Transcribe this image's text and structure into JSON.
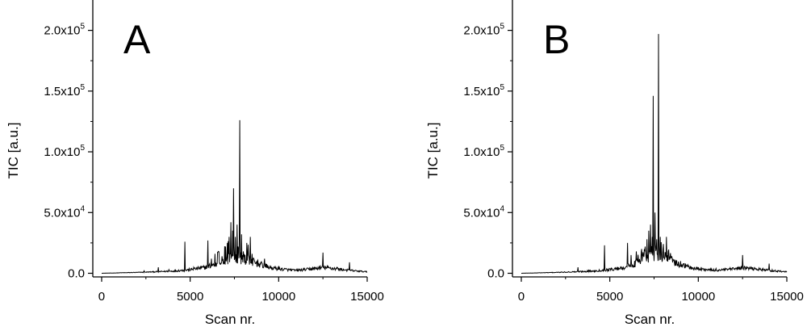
{
  "chart_data": [
    {
      "type": "line",
      "panel_label": "A",
      "xlabel": "Scan nr.",
      "ylabel": "TIC [a.u.]",
      "xlim": [
        -500,
        15000
      ],
      "ylim": [
        -3000,
        225000
      ],
      "xticks": [
        0,
        5000,
        10000,
        15000
      ],
      "xtick_labels": [
        "0",
        "5000",
        "10000",
        "15000"
      ],
      "yticks": [
        0,
        50000,
        100000,
        150000,
        200000
      ],
      "ytick_labels": [
        {
          "mantissa": "0.0",
          "exp": ""
        },
        {
          "mantissa": "5.0x10",
          "exp": "4"
        },
        {
          "mantissa": "1.0x10",
          "exp": "5"
        },
        {
          "mantissa": "1.5x10",
          "exp": "5"
        },
        {
          "mantissa": "2.0x10",
          "exp": "5"
        }
      ],
      "baseline": [
        [
          0,
          0
        ],
        [
          1000,
          300
        ],
        [
          2000,
          600
        ],
        [
          3000,
          1000
        ],
        [
          4000,
          1500
        ],
        [
          5000,
          2500
        ],
        [
          5800,
          4000
        ],
        [
          6500,
          6500
        ],
        [
          7000,
          9000
        ],
        [
          7500,
          11000
        ],
        [
          8000,
          10000
        ],
        [
          8500,
          8000
        ],
        [
          9000,
          6000
        ],
        [
          9500,
          4000
        ],
        [
          10000,
          3000
        ],
        [
          11000,
          2000
        ],
        [
          12000,
          3200
        ],
        [
          12500,
          4000
        ],
        [
          13000,
          3500
        ],
        [
          14000,
          2000
        ],
        [
          15000,
          1000
        ]
      ],
      "peaks": [
        [
          2400,
          2000
        ],
        [
          3200,
          5000
        ],
        [
          3800,
          3000
        ],
        [
          4700,
          26000
        ],
        [
          5200,
          5000
        ],
        [
          5600,
          6000
        ],
        [
          6000,
          27000
        ],
        [
          6200,
          12000
        ],
        [
          6400,
          16000
        ],
        [
          6600,
          18000
        ],
        [
          6800,
          14000
        ],
        [
          7000,
          22000
        ],
        [
          7100,
          25000
        ],
        [
          7200,
          30000
        ],
        [
          7300,
          42000
        ],
        [
          7400,
          35000
        ],
        [
          7450,
          70000
        ],
        [
          7550,
          30000
        ],
        [
          7650,
          40000
        ],
        [
          7800,
          126000
        ],
        [
          7900,
          32000
        ],
        [
          8000,
          18000
        ],
        [
          8200,
          25000
        ],
        [
          8300,
          15000
        ],
        [
          8400,
          30000
        ],
        [
          8600,
          12000
        ],
        [
          8800,
          10000
        ],
        [
          9000,
          9000
        ],
        [
          9200,
          12000
        ],
        [
          10000,
          6000
        ],
        [
          10400,
          4000
        ],
        [
          11800,
          4000
        ],
        [
          12500,
          17000
        ],
        [
          13300,
          5000
        ],
        [
          14000,
          9000
        ]
      ]
    },
    {
      "type": "line",
      "panel_label": "B",
      "xlabel": "Scan nr.",
      "ylabel": "TIC [a.u.]",
      "xlim": [
        -500,
        15000
      ],
      "ylim": [
        -3000,
        225000
      ],
      "xticks": [
        0,
        5000,
        10000,
        15000
      ],
      "xtick_labels": [
        "0",
        "5000",
        "10000",
        "15000"
      ],
      "yticks": [
        0,
        50000,
        100000,
        150000,
        200000
      ],
      "ytick_labels": [
        {
          "mantissa": "0.0",
          "exp": ""
        },
        {
          "mantissa": "5.0x10",
          "exp": "4"
        },
        {
          "mantissa": "1.0x10",
          "exp": "5"
        },
        {
          "mantissa": "1.5x10",
          "exp": "5"
        },
        {
          "mantissa": "2.0x10",
          "exp": "5"
        }
      ],
      "baseline": [
        [
          0,
          0
        ],
        [
          1000,
          300
        ],
        [
          2000,
          600
        ],
        [
          3000,
          1000
        ],
        [
          4000,
          1500
        ],
        [
          5000,
          2500
        ],
        [
          5800,
          4000
        ],
        [
          6500,
          7000
        ],
        [
          7000,
          10000
        ],
        [
          7500,
          13000
        ],
        [
          8000,
          11000
        ],
        [
          8500,
          8000
        ],
        [
          9000,
          6000
        ],
        [
          9500,
          4000
        ],
        [
          10000,
          3000
        ],
        [
          11000,
          2000
        ],
        [
          12000,
          3000
        ],
        [
          12500,
          3800
        ],
        [
          13000,
          3200
        ],
        [
          14000,
          2000
        ],
        [
          15000,
          1000
        ]
      ],
      "peaks": [
        [
          3200,
          5000
        ],
        [
          3800,
          3000
        ],
        [
          4700,
          23000
        ],
        [
          5600,
          5000
        ],
        [
          6000,
          25000
        ],
        [
          6200,
          15000
        ],
        [
          6500,
          18000
        ],
        [
          6800,
          20000
        ],
        [
          7000,
          22000
        ],
        [
          7100,
          28000
        ],
        [
          7200,
          35000
        ],
        [
          7300,
          40000
        ],
        [
          7400,
          30000
        ],
        [
          7450,
          146000
        ],
        [
          7550,
          50000
        ],
        [
          7650,
          28000
        ],
        [
          7750,
          197000
        ],
        [
          7850,
          30000
        ],
        [
          8000,
          20000
        ],
        [
          8200,
          30000
        ],
        [
          8300,
          18000
        ],
        [
          8500,
          14000
        ],
        [
          9000,
          10000
        ],
        [
          9200,
          8000
        ],
        [
          10000,
          5000
        ],
        [
          11000,
          4000
        ],
        [
          12500,
          15000
        ],
        [
          13500,
          4000
        ],
        [
          14000,
          8000
        ]
      ]
    }
  ]
}
